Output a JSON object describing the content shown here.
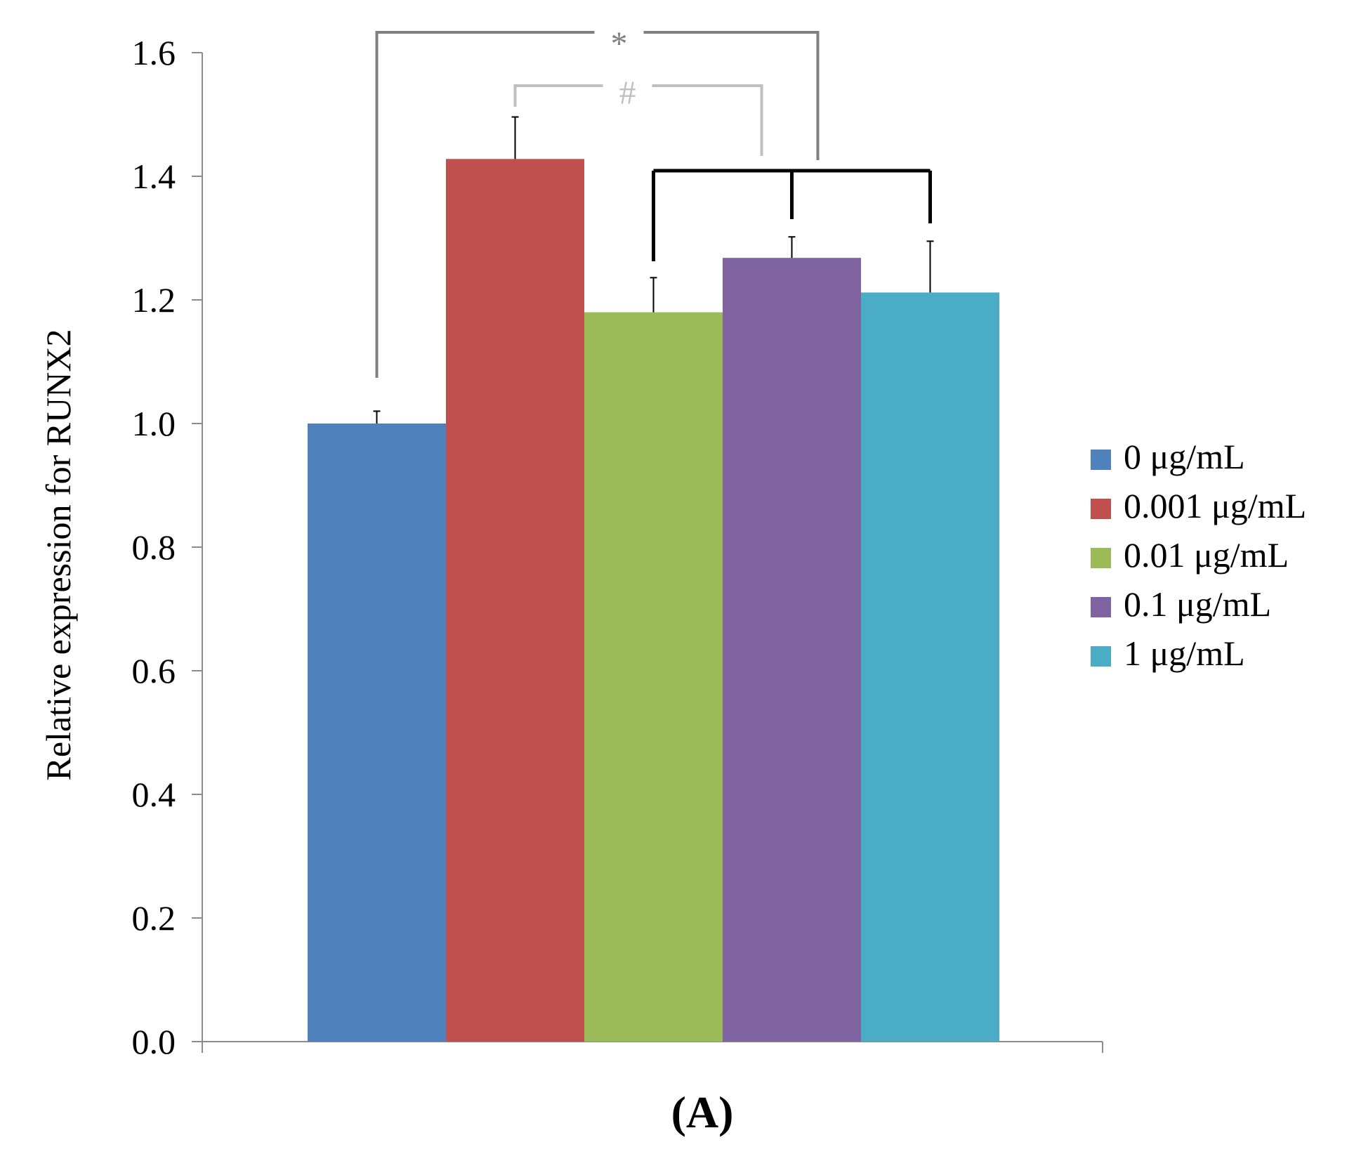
{
  "chart_data": {
    "type": "bar",
    "title": "",
    "xlabel": "",
    "ylabel": "Relative expression for RUNX2",
    "ylim": [
      0,
      1.6
    ],
    "yticks": [
      "0.0",
      "0.2",
      "0.4",
      "0.6",
      "0.8",
      "1.0",
      "1.2",
      "1.4",
      "1.6"
    ],
    "grid": false,
    "legend_position": "right",
    "panel_label": "(A)",
    "series": [
      {
        "name": "0 μg/mL",
        "value": 1.0,
        "error": 0.02,
        "color": "#4f81bd"
      },
      {
        "name": "0.001 μg/mL",
        "value": 1.428,
        "error": 0.068,
        "color": "#c0504d"
      },
      {
        "name": "0.01 μg/mL",
        "value": 1.18,
        "error": 0.056,
        "color": "#9bbb59"
      },
      {
        "name": "0.1 μg/mL",
        "value": 1.268,
        "error": 0.034,
        "color": "#8064a2"
      },
      {
        "name": "1 μg/mL",
        "value": 1.212,
        "error": 0.083,
        "color": "#4bacc6"
      }
    ],
    "annotations": [
      {
        "label": "*",
        "from_group": 0,
        "to_group": 3,
        "color": "#7f7f7f"
      },
      {
        "label": "#",
        "from_group": 1,
        "to_group": 3,
        "color": "#bfbfbf"
      },
      {
        "label": "",
        "groups": [
          2,
          3,
          4
        ],
        "color": "#000000"
      }
    ]
  }
}
